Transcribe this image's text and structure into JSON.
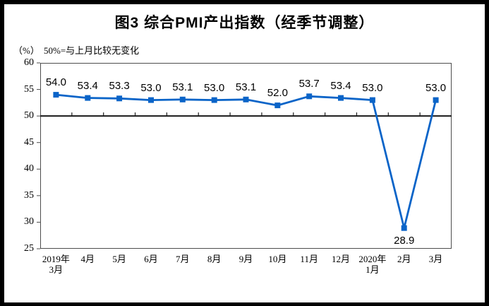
{
  "title": "图3 综合PMI产出指数（经季节调整）",
  "subtitle": {
    "unit": "（%）",
    "note": "50%=与上月比较无变化"
  },
  "chart_data": {
    "type": "line",
    "title": "图3 综合PMI产出指数（经季节调整）",
    "categories": [
      "2019年\n3月",
      "4月",
      "5月",
      "6月",
      "7月",
      "8月",
      "9月",
      "10月",
      "11月",
      "12月",
      "2020年\n1月",
      "2月",
      "3月"
    ],
    "series": [
      {
        "name": "综合PMI产出指数",
        "values": [
          54.0,
          53.4,
          53.3,
          53.0,
          53.1,
          53.0,
          53.1,
          52.0,
          53.7,
          53.4,
          53.0,
          28.9,
          53.0
        ]
      }
    ],
    "data_labels": [
      "54.0",
      "53.4",
      "53.3",
      "53.0",
      "53.1",
      "53.0",
      "53.1",
      "52.0",
      "53.7",
      "53.4",
      "53.0",
      "28.9",
      "53.0"
    ],
    "ylim": [
      25,
      60
    ],
    "yticks": [
      60,
      55,
      50,
      45,
      40,
      35,
      30,
      25
    ],
    "reference_line": 50,
    "grid": "off",
    "legend": "none",
    "colors": {
      "line": "#0a64c8",
      "axis": "#4d4d4d",
      "reference": "#1a1a1a",
      "text": "#000000",
      "frame": "#000000",
      "background": "#ffffff"
    }
  }
}
